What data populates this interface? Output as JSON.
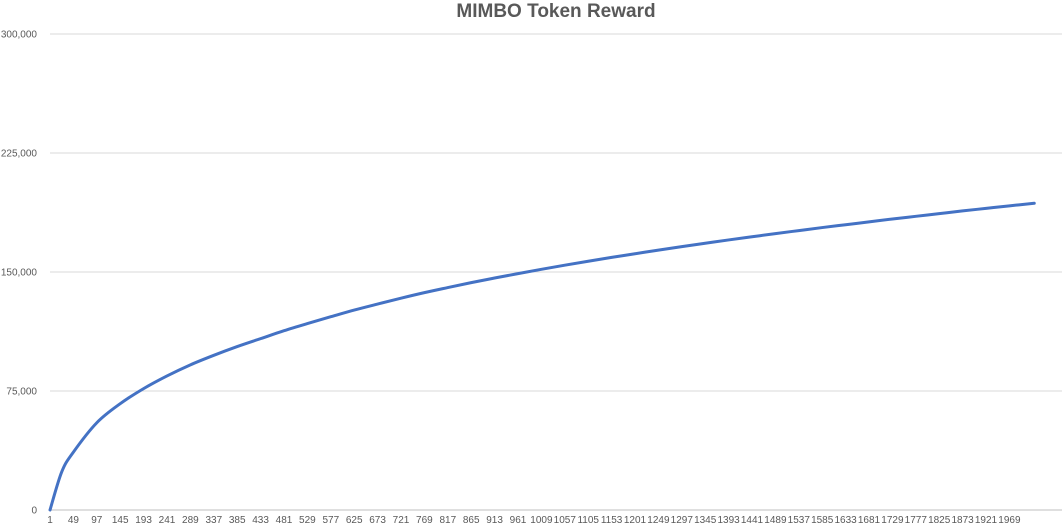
{
  "chart_data": {
    "type": "line",
    "title": "MIMBO Token Reward",
    "xlabel": "",
    "ylabel": "",
    "ylim": [
      0,
      300000
    ],
    "y_ticks": [
      0,
      75000,
      150000,
      225000,
      300000
    ],
    "y_tick_labels": [
      "0",
      "75,000",
      "150,000",
      "225,000",
      "300,000"
    ],
    "x_tick_labels": [
      "1",
      "49",
      "97",
      "145",
      "193",
      "241",
      "289",
      "337",
      "385",
      "433",
      "481",
      "529",
      "577",
      "625",
      "673",
      "721",
      "769",
      "817",
      "865",
      "913",
      "961",
      "1009",
      "1057",
      "1105",
      "1153",
      "1201",
      "1249",
      "1297",
      "1345",
      "1393",
      "1441",
      "1489",
      "1537",
      "1585",
      "1633",
      "1681",
      "1729",
      "1777",
      "1825",
      "1873",
      "1921",
      "1969"
    ],
    "xlim": [
      1,
      2020
    ],
    "grid": true,
    "legend": "none",
    "series": [
      {
        "color": "#4472c4",
        "x": [
          1,
          25,
          49,
          97,
          145,
          193,
          241,
          289,
          337,
          385,
          433,
          481,
          529,
          577,
          625,
          673,
          721,
          769,
          817,
          865,
          913,
          961,
          1009,
          1057,
          1105,
          1153,
          1201,
          1249,
          1297,
          1345,
          1393,
          1441,
          1489,
          1537,
          1585,
          1633,
          1681,
          1729,
          1777,
          1825,
          1873,
          1921,
          1969,
          2020
        ],
        "y": [
          0,
          24000,
          36500,
          55000,
          67000,
          76500,
          84500,
          91500,
          97500,
          103000,
          108000,
          113000,
          117500,
          121800,
          126000,
          129800,
          133500,
          137000,
          140200,
          143300,
          146200,
          149000,
          151700,
          154300,
          156800,
          159200,
          161500,
          163800,
          166000,
          168100,
          170200,
          172200,
          174200,
          176100,
          178000,
          179800,
          181600,
          183400,
          185100,
          186800,
          188500,
          190100,
          191700,
          193300
        ]
      }
    ]
  }
}
